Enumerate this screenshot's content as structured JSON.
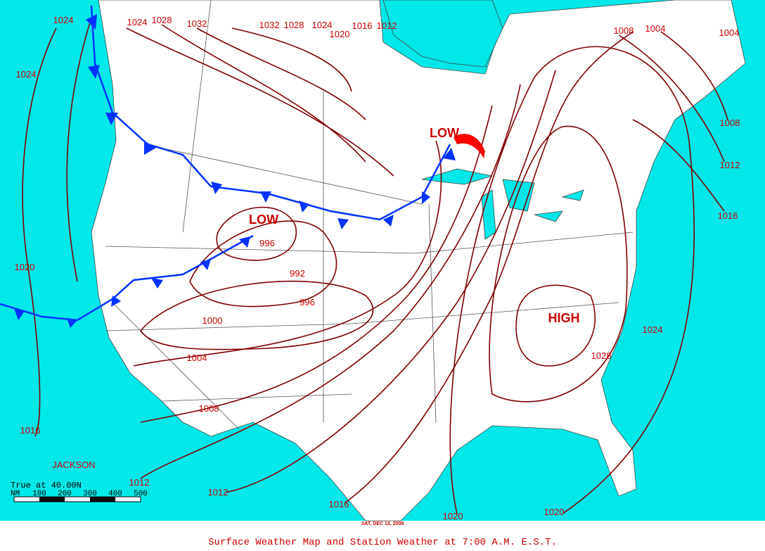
{
  "map": {
    "isobar_labels": [
      "1024",
      "1024",
      "1028",
      "1032",
      "1032",
      "1028",
      "1024",
      "1020",
      "1016",
      "1012",
      "1008",
      "1004",
      "1004",
      "1024",
      "1008",
      "1012",
      "1016",
      "1020",
      "996",
      "992",
      "996",
      "1000",
      "1004",
      "1008",
      "1024",
      "1028",
      "1016",
      "1012",
      "1012",
      "1016",
      "1020",
      "1020"
    ],
    "pressure_centers": [
      "LOW",
      "LOW",
      "HIGH"
    ],
    "place_labels": [
      "JACKSON"
    ],
    "scale": {
      "note": "True at 40.00N",
      "unit": "NM",
      "ticks": [
        "100",
        "200",
        "300",
        "400",
        "500"
      ]
    },
    "date_stamp": "SAT, DEC 13, 2008",
    "caption": "Surface Weather Map and Station Weather at 7:00 A.M. E.S.T."
  }
}
